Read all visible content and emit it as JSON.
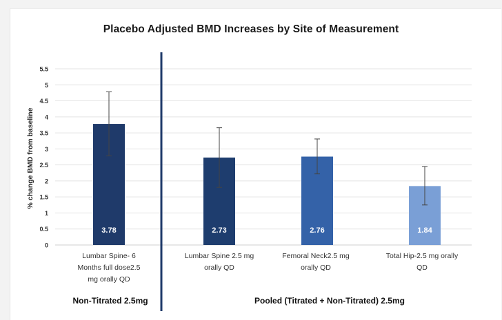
{
  "chart_data": {
    "type": "bar",
    "title": "Placebo Adjusted BMD Increases by Site of Measurement",
    "ylabel": "% change BMD from baseline",
    "xlabel": "",
    "ylim": [
      0,
      5.5
    ],
    "yticks": [
      "0",
      "0.5",
      "1",
      "1.5",
      "2",
      "2.5",
      "3",
      "3.5",
      "4",
      "4.5",
      "5",
      "5.5"
    ],
    "grid": true,
    "categories": [
      "Lumbar Spine- 6 Months full dose2.5 mg orally QD",
      "Lumbar Spine 2.5 mg orally QD",
      "Femoral Neck2.5 mg orally QD",
      "Total Hip-2.5 mg orally QD"
    ],
    "category_lines": [
      [
        "Lumbar Spine- 6",
        "Months full dose2.5",
        "mg orally QD"
      ],
      [
        "Lumbar Spine 2.5 mg",
        "orally QD"
      ],
      [
        "Femoral Neck2.5 mg",
        "orally QD"
      ],
      [
        "Total Hip-2.5 mg orally",
        "QD"
      ]
    ],
    "values": [
      3.78,
      2.73,
      2.76,
      1.84
    ],
    "value_labels": [
      "3.78",
      "2.73",
      "2.76",
      "1.84"
    ],
    "error_low": [
      2.78,
      1.8,
      2.22,
      1.25
    ],
    "error_high": [
      4.78,
      3.66,
      3.31,
      2.45
    ],
    "colors": [
      "#1f3a6a",
      "#1e3d6e",
      "#3462a8",
      "#7a9fd6"
    ],
    "groups": [
      "Non-Titrated 2.5mg",
      "Pooled (Titrated + Non-Titrated) 2.5mg"
    ]
  }
}
